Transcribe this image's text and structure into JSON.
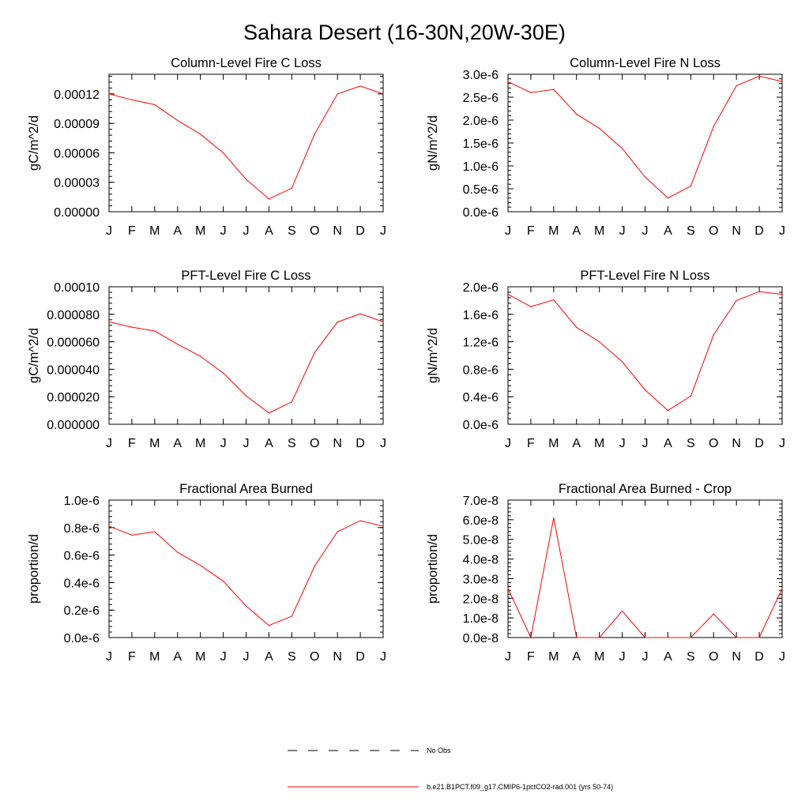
{
  "title": "Sahara Desert (16-30N,20W-30E)",
  "colors": {
    "model_line": "#ff0000",
    "obs_line": "#000000",
    "axes": "#000000"
  },
  "legend": {
    "placement": "bottom-center",
    "entries": [
      {
        "label": "No Obs",
        "style": "dashed",
        "color": "#000000"
      },
      {
        "label": "b.e21.B1PCT.f09_g17.CMIP6-1pctCO2-rad.001 (yrs 50-74)",
        "style": "solid",
        "color": "#ff0000"
      }
    ]
  },
  "chart_data": [
    {
      "type": "line",
      "title": "Column-Level Fire C Loss",
      "ylabel": "gC/m^2/d",
      "ylim": [
        0,
        0.00014
      ],
      "yticks": [
        0,
        3e-05,
        6e-05,
        9e-05,
        0.00012
      ],
      "ytick_labels": [
        "0.00000",
        "0.00003",
        "0.00006",
        "0.00009",
        "0.00012"
      ],
      "categories": [
        "J",
        "F",
        "M",
        "A",
        "M",
        "J",
        "J",
        "A",
        "S",
        "O",
        "N",
        "D",
        "J"
      ],
      "series": [
        {
          "values": [
            0.00012,
            0.000114,
            0.000109,
            9.3e-05,
            7.9e-05,
            6e-05,
            3.3e-05,
            1.3e-05,
            2.4e-05,
            7.9e-05,
            0.00012,
            0.000128,
            0.00012
          ]
        }
      ]
    },
    {
      "type": "line",
      "title": "Column-Level Fire N Loss",
      "ylabel": "gN/m^2/d",
      "ylim": [
        0,
        3e-06
      ],
      "yticks": [
        0,
        5e-07,
        1e-06,
        1.5e-06,
        2e-06,
        2.5e-06,
        3e-06
      ],
      "ytick_labels": [
        "0.0e-6",
        "0.5e-6",
        "1.0e-6",
        "1.5e-6",
        "2.0e-6",
        "2.5e-6",
        "3.0e-6"
      ],
      "categories": [
        "J",
        "F",
        "M",
        "A",
        "M",
        "J",
        "J",
        "A",
        "S",
        "O",
        "N",
        "D",
        "J"
      ],
      "series": [
        {
          "values": [
            2.84e-06,
            2.6e-06,
            2.67e-06,
            2.13e-06,
            1.82e-06,
            1.38e-06,
            7.6e-07,
            3e-07,
            5.6e-07,
            1.86e-06,
            2.75e-06,
            2.96e-06,
            2.84e-06
          ]
        }
      ]
    },
    {
      "type": "line",
      "title": "PFT-Level Fire C Loss",
      "ylabel": "gC/m^2/d",
      "ylim": [
        0,
        0.0001
      ],
      "yticks": [
        0,
        2e-05,
        4e-05,
        6e-05,
        8e-05,
        0.0001
      ],
      "ytick_labels": [
        "0.000000",
        "0.000020",
        "0.000040",
        "0.000060",
        "0.000080",
        "0.00010"
      ],
      "categories": [
        "J",
        "F",
        "M",
        "A",
        "M",
        "J",
        "J",
        "A",
        "S",
        "O",
        "N",
        "D",
        "J"
      ],
      "series": [
        {
          "values": [
            7.45e-05,
            7.06e-05,
            6.78e-05,
            5.82e-05,
            4.94e-05,
            3.72e-05,
            2.07e-05,
            8.2e-06,
            1.63e-05,
            5.22e-05,
            7.43e-05,
            8.04e-05,
            7.45e-05
          ]
        }
      ]
    },
    {
      "type": "line",
      "title": "PFT-Level Fire N Loss",
      "ylabel": "gN/m^2/d",
      "ylim": [
        0,
        2e-06
      ],
      "yticks": [
        0,
        4e-07,
        8e-07,
        1.2e-06,
        1.6e-06,
        2e-06
      ],
      "ytick_labels": [
        "0.0e-6",
        "0.4e-6",
        "0.8e-6",
        "1.2e-6",
        "1.6e-6",
        "2.0e-6"
      ],
      "categories": [
        "J",
        "F",
        "M",
        "A",
        "M",
        "J",
        "J",
        "A",
        "S",
        "O",
        "N",
        "D",
        "J"
      ],
      "series": [
        {
          "values": [
            1.89e-06,
            1.71e-06,
            1.81e-06,
            1.41e-06,
            1.2e-06,
            9.1e-07,
            5e-07,
            2e-07,
            4.1e-07,
            1.3e-06,
            1.8e-06,
            1.93e-06,
            1.89e-06
          ]
        }
      ]
    },
    {
      "type": "line",
      "title": "Fractional Area Burned",
      "ylabel": "proportion/d",
      "ylim": [
        0,
        1e-06
      ],
      "yticks": [
        0,
        2e-07,
        4e-07,
        6e-07,
        8e-07,
        1e-06
      ],
      "ytick_labels": [
        "0.0e-6",
        "0.2e-6",
        "0.4e-6",
        "0.6e-6",
        "0.8e-6",
        "1.0e-6"
      ],
      "categories": [
        "J",
        "F",
        "M",
        "A",
        "M",
        "J",
        "J",
        "A",
        "S",
        "O",
        "N",
        "D",
        "J"
      ],
      "series": [
        {
          "values": [
            8.1e-07,
            7.45e-07,
            7.7e-07,
            6.2e-07,
            5.25e-07,
            4.1e-07,
            2.3e-07,
            8.8e-08,
            1.55e-07,
            5.2e-07,
            7.7e-07,
            8.5e-07,
            8.1e-07
          ]
        }
      ]
    },
    {
      "type": "line",
      "title": "Fractional Area Burned - Crop",
      "ylabel": "proportion/d",
      "ylim": [
        0,
        7e-08
      ],
      "yticks": [
        0,
        1e-08,
        2e-08,
        3e-08,
        4e-08,
        5e-08,
        6e-08,
        7e-08
      ],
      "ytick_labels": [
        "0.0e-8",
        "1.0e-8",
        "2.0e-8",
        "3.0e-8",
        "4.0e-8",
        "5.0e-8",
        "6.0e-8",
        "7.0e-8"
      ],
      "categories": [
        "J",
        "F",
        "M",
        "A",
        "M",
        "J",
        "J",
        "A",
        "S",
        "O",
        "N",
        "D",
        "J"
      ],
      "series": [
        {
          "values": [
            2.5e-08,
            0,
            6.1e-08,
            0,
            0,
            1.35e-08,
            0,
            0,
            0,
            1.2e-08,
            0,
            0,
            2.5e-08
          ]
        }
      ]
    }
  ]
}
